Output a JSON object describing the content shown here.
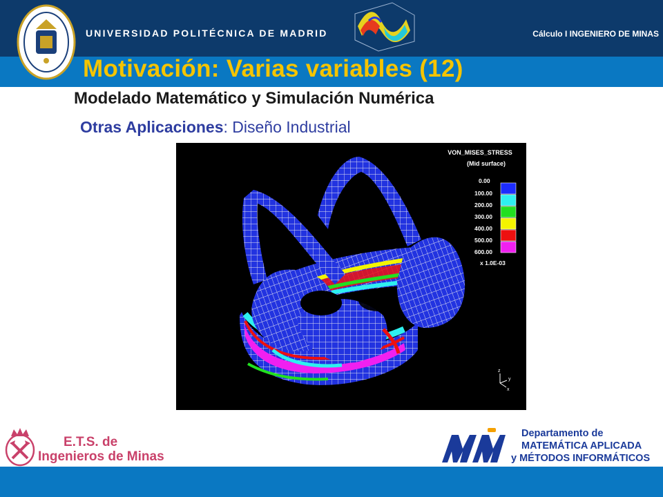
{
  "header": {
    "university_name": "UNIVERSIDAD POLITÉCNICA DE MADRID",
    "course_label": "Cálculo I INGENIERO DE MINAS",
    "seal_icon": "university-seal-icon",
    "surface_plot_icon": "3d-surface-plot-icon"
  },
  "slide": {
    "title": "Motivación: Varias variables (12)",
    "subtitle": "Modelado Matemático y Simulación Numérica",
    "section_bold": "Otras Aplicaciones",
    "section_rest": ": Diseño Industrial"
  },
  "figure": {
    "legend_title": "VON_MISES_STRESS",
    "legend_subtitle": "(Mid surface)",
    "legend_levels": [
      {
        "label": "0.00",
        "color": ""
      },
      {
        "label": "100.00",
        "color": "#1c2cff"
      },
      {
        "label": "200.00",
        "color": "#2ef0f0"
      },
      {
        "label": "300.00",
        "color": "#22e020"
      },
      {
        "label": "400.00",
        "color": "#f4f400"
      },
      {
        "label": "500.00",
        "color": "#ee1010"
      },
      {
        "label": "600.00",
        "color": "#f020f0"
      }
    ],
    "scale_factor": "x 1.0E-03",
    "axis_z": "z",
    "axis_y": "y",
    "axis_x": "x"
  },
  "footer": {
    "ets_line1": "E.T.S. de",
    "ets_line2": "Ingenieros de Minas",
    "dept_line1": "Departamento de",
    "dept_line2": "MATEMÁTICA APLICADA",
    "dept_line3": "y MÉTODOS INFORMÁTICOS",
    "ets_logo_icon": "crown-picks-icon",
    "dept_logo_icon": "mami-logo-icon"
  },
  "colors": {
    "header_dark": "#0d3a6b",
    "band_blue": "#0a78c2",
    "title_yellow": "#f5c400",
    "section_blue": "#2e3da0",
    "ets_red": "#c9416a",
    "dept_blue": "#1a3a9a"
  }
}
